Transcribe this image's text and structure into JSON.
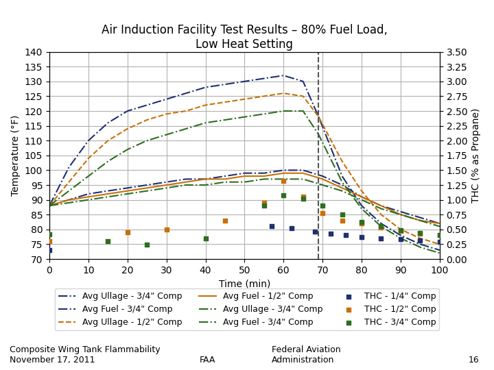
{
  "chart_data": {
    "type": "line",
    "title": "Air Induction Facility Test Results – 80% Fuel Load,\nLow Heat Setting",
    "x_label": "Time (min)",
    "y_label": "Temperature (°F)",
    "y2_label": "THC (% as Propane)",
    "xlim": [
      0,
      100
    ],
    "xticks": [
      0,
      10,
      20,
      30,
      40,
      50,
      60,
      70,
      80,
      90,
      100
    ],
    "ylim": [
      70,
      140
    ],
    "yticks": [
      70,
      75,
      80,
      85,
      90,
      95,
      100,
      105,
      110,
      115,
      120,
      125,
      130,
      135,
      140
    ],
    "y2lim": [
      0,
      3.5
    ],
    "y2ticks": [
      {
        "value": 0,
        "label": "0.00"
      },
      {
        "value": 0.25,
        "label": "0.25"
      },
      {
        "value": 0.5,
        "label": "0.50"
      },
      {
        "value": 0.75,
        "label": "0.75"
      },
      {
        "value": 1.0,
        "label": "1.00"
      },
      {
        "value": 1.25,
        "label": "1.25"
      },
      {
        "value": 1.5,
        "label": "1.50"
      },
      {
        "value": 1.75,
        "label": "1.75"
      },
      {
        "value": 2.0,
        "label": "2.00"
      },
      {
        "value": 2.25,
        "label": "2.25"
      },
      {
        "value": 2.5,
        "label": "2.50"
      },
      {
        "value": 2.75,
        "label": "2.75"
      },
      {
        "value": 3.0,
        "label": "3.00"
      },
      {
        "value": 3.25,
        "label": "3.25"
      },
      {
        "value": 3.5,
        "label": "3.50"
      }
    ],
    "grid": true,
    "legend": "lower center",
    "vlines": [
      {
        "x": 69,
        "color": "#555555",
        "line_style": "dashed"
      }
    ],
    "annotations": [
      "Composite Wing Tank Flammability\nNovember 17, 2011",
      "FAA",
      "Federal Aviation\nAdministration",
      "16"
    ],
    "series": [
      {
        "name": "Avg Ullage - 3/4\" Comp",
        "type": "line",
        "color": "#1F3070",
        "line_style": "dashdot",
        "x": [
          0,
          5,
          10,
          15,
          20,
          25,
          30,
          35,
          40,
          45,
          50,
          55,
          60,
          65,
          69,
          72,
          75,
          80,
          85,
          90,
          95,
          100
        ],
        "values": [
          88,
          101,
          110,
          116,
          120,
          122,
          124,
          126,
          128,
          129,
          130,
          131,
          132,
          130,
          118,
          108,
          98,
          88,
          82,
          78,
          75,
          73
        ]
      },
      {
        "name": "Avg Fuel - 3/4\" Comp",
        "type": "line",
        "color": "#1F3070",
        "line_style": "dashdot",
        "x": [
          0,
          5,
          10,
          15,
          20,
          25,
          30,
          35,
          40,
          45,
          50,
          55,
          60,
          65,
          70,
          75,
          80,
          85,
          90,
          95,
          100
        ],
        "values": [
          88,
          90,
          92,
          93,
          94,
          95,
          96,
          97,
          97,
          98,
          99,
          99,
          100,
          100,
          98,
          95,
          91,
          88,
          86,
          84,
          82
        ]
      },
      {
        "name": "Avg Ullage - 1/2\" Comp",
        "type": "line",
        "color": "#C8700A",
        "line_style": "dashed",
        "x": [
          0,
          5,
          10,
          15,
          20,
          25,
          30,
          35,
          40,
          45,
          50,
          55,
          60,
          65,
          69,
          75,
          80,
          85,
          90,
          95,
          100
        ],
        "values": [
          88,
          96,
          104,
          110,
          114,
          117,
          119,
          120,
          122,
          123,
          124,
          125,
          126,
          125,
          118,
          103,
          93,
          85,
          80,
          77,
          75
        ]
      },
      {
        "name": "Avg Fuel - 1/2\" Comp",
        "type": "line",
        "color": "#C8700A",
        "line_style": "solid",
        "x": [
          0,
          5,
          10,
          15,
          20,
          25,
          30,
          35,
          40,
          45,
          50,
          55,
          60,
          65,
          70,
          75,
          80,
          85,
          90,
          95,
          100
        ],
        "values": [
          88,
          90,
          91,
          92,
          93,
          94,
          95,
          96,
          97,
          97,
          98,
          98,
          99,
          99,
          97,
          94,
          91,
          88,
          85,
          83,
          82
        ]
      },
      {
        "name": "Avg Ullage - 3/4\" Comp",
        "type": "line",
        "color": "#2D6E1F",
        "line_style": "dashdot",
        "x": [
          0,
          5,
          10,
          15,
          20,
          25,
          30,
          35,
          40,
          45,
          50,
          55,
          60,
          65,
          69,
          75,
          80,
          85,
          90,
          95,
          100
        ],
        "values": [
          88,
          93,
          98,
          103,
          107,
          110,
          112,
          114,
          116,
          117,
          118,
          119,
          120,
          120,
          112,
          96,
          87,
          81,
          77,
          74,
          72
        ]
      },
      {
        "name": "Avg Fuel - 3/4\" Comp",
        "type": "line",
        "color": "#2D6E1F",
        "line_style": "dashdot",
        "x": [
          0,
          5,
          10,
          15,
          20,
          25,
          30,
          35,
          40,
          45,
          50,
          55,
          60,
          65,
          70,
          75,
          80,
          85,
          90,
          95,
          100
        ],
        "values": [
          88,
          89,
          90,
          91,
          92,
          93,
          94,
          95,
          95,
          96,
          96,
          97,
          97,
          97,
          95,
          93,
          90,
          87,
          85,
          83,
          81
        ]
      },
      {
        "name": "THC - 1/4\" Comp",
        "type": "scatter",
        "axis": "y2",
        "color": "#1F3070",
        "marker": "square",
        "x": [
          0,
          57,
          62,
          68,
          72,
          76,
          80,
          85,
          90,
          95,
          100
        ],
        "values": [
          0.15,
          0.55,
          0.52,
          0.46,
          0.43,
          0.4,
          0.37,
          0.35,
          0.33,
          0.31,
          0.29
        ]
      },
      {
        "name": "THC - 1/2\" Comp",
        "type": "scatter",
        "axis": "y2",
        "color": "#C8700A",
        "marker": "square",
        "x": [
          0,
          20,
          30,
          45,
          55,
          60,
          65,
          70,
          75,
          80,
          85,
          90,
          95,
          100
        ],
        "values": [
          0.3,
          0.45,
          0.5,
          0.65,
          0.95,
          1.32,
          1.05,
          0.78,
          0.65,
          0.6,
          0.53,
          0.48,
          0.43,
          0.4
        ]
      },
      {
        "name": "THC - 3/4\" Comp",
        "type": "scatter",
        "axis": "y2",
        "color": "#2D6E1F",
        "marker": "square",
        "x": [
          0,
          15,
          25,
          40,
          55,
          60,
          65,
          70,
          75,
          80,
          85,
          90,
          95,
          100
        ],
        "values": [
          0.42,
          0.3,
          0.24,
          0.35,
          0.9,
          1.08,
          1.02,
          0.9,
          0.75,
          0.62,
          0.55,
          0.49,
          0.44,
          0.41
        ]
      }
    ]
  }
}
